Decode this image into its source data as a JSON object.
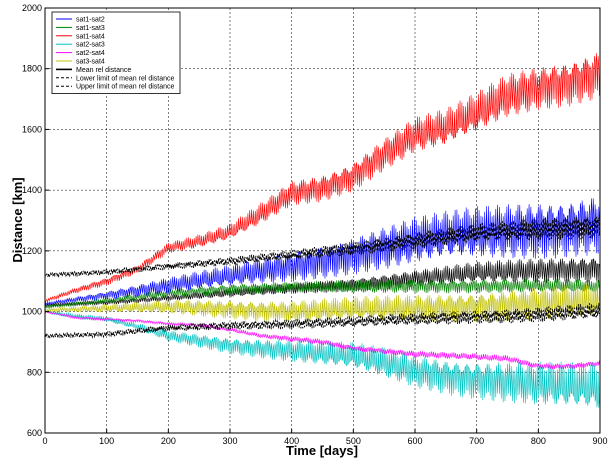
{
  "chart_data": {
    "type": "line",
    "title": "",
    "xlabel": "Time [days]",
    "ylabel": "Distance [km]",
    "xlim": [
      0,
      900
    ],
    "ylim": [
      600,
      2000
    ],
    "xticks": [
      0,
      100,
      200,
      300,
      400,
      500,
      600,
      700,
      800,
      900
    ],
    "yticks": [
      600,
      800,
      1000,
      1200,
      1400,
      1600,
      1800,
      2000
    ],
    "grid": true,
    "legend_position": "top-left",
    "series": [
      {
        "name": "sat1-sat2",
        "color": "#0000ff",
        "style": "solid",
        "x": [
          0,
          100,
          200,
          300,
          400,
          500,
          600,
          700,
          800,
          900
        ],
        "y": [
          1025,
          1055,
          1085,
          1115,
          1150,
          1190,
          1230,
          1255,
          1275,
          1295
        ],
        "amplitude": [
          5,
          15,
          30,
          40,
          55,
          70,
          85,
          95,
          105,
          110
        ]
      },
      {
        "name": "sat1-sat3",
        "color": "#008000",
        "style": "solid",
        "x": [
          0,
          100,
          200,
          300,
          400,
          500,
          600,
          700,
          800,
          900
        ],
        "y": [
          1015,
          1035,
          1060,
          1075,
          1080,
          1080,
          1085,
          1085,
          1085,
          1080
        ],
        "amplitude": [
          5,
          10,
          15,
          20,
          20,
          25,
          25,
          25,
          25,
          25
        ]
      },
      {
        "name": "sat1-sat4",
        "color": "#ff0000",
        "style": "solid",
        "x": [
          0,
          50,
          100,
          150,
          200,
          250,
          300,
          350,
          400,
          450,
          500,
          550,
          600,
          650,
          700,
          750,
          800,
          850,
          900
        ],
        "y": [
          1035,
          1070,
          1100,
          1140,
          1210,
          1230,
          1260,
          1320,
          1390,
          1410,
          1450,
          1520,
          1580,
          1600,
          1650,
          1710,
          1740,
          1760,
          1790
        ],
        "amplitude": [
          5,
          10,
          15,
          15,
          20,
          25,
          30,
          40,
          45,
          50,
          55,
          60,
          65,
          70,
          75,
          80,
          80,
          85,
          90
        ]
      },
      {
        "name": "sat2-sat3",
        "color": "#00c0c0",
        "style": "solid",
        "x": [
          0,
          50,
          100,
          150,
          200,
          250,
          300,
          350,
          400,
          450,
          500,
          550,
          600,
          650,
          700,
          750,
          800,
          850,
          900
        ],
        "y": [
          1000,
          985,
          975,
          950,
          920,
          905,
          890,
          880,
          870,
          860,
          850,
          830,
          805,
          790,
          780,
          770,
          760,
          750,
          745
        ],
        "amplitude": [
          5,
          8,
          10,
          12,
          20,
          25,
          30,
          35,
          40,
          45,
          50,
          55,
          60,
          65,
          70,
          75,
          80,
          85,
          90
        ]
      },
      {
        "name": "sat2-sat4",
        "color": "#ff00ff",
        "style": "solid",
        "x": [
          0,
          50,
          100,
          150,
          200,
          250,
          300,
          350,
          400,
          450,
          500,
          550,
          600,
          650,
          700,
          750,
          800,
          850,
          900
        ],
        "y": [
          1000,
          980,
          975,
          970,
          960,
          955,
          940,
          920,
          910,
          900,
          880,
          870,
          860,
          855,
          850,
          845,
          820,
          820,
          830
        ],
        "amplitude": [
          3,
          5,
          5,
          5,
          5,
          6,
          8,
          8,
          10,
          10,
          10,
          10,
          12,
          12,
          12,
          12,
          10,
          10,
          10
        ]
      },
      {
        "name": "sat3-sat4",
        "color": "#c0c000",
        "style": "solid",
        "x": [
          0,
          100,
          200,
          300,
          400,
          500,
          600,
          700,
          800,
          900
        ],
        "y": [
          1005,
          1010,
          1015,
          1010,
          1000,
          1005,
          1010,
          1020,
          1025,
          1030
        ],
        "amplitude": [
          5,
          15,
          25,
          35,
          40,
          45,
          50,
          55,
          60,
          65
        ]
      },
      {
        "name": "Mean rel distance",
        "color": "#000000",
        "style": "solid",
        "x": [
          0,
          100,
          200,
          300,
          400,
          500,
          600,
          700,
          800,
          900
        ],
        "y": [
          1020,
          1030,
          1045,
          1060,
          1075,
          1090,
          1110,
          1125,
          1135,
          1145
        ],
        "amplitude": [
          5,
          8,
          10,
          15,
          20,
          25,
          30,
          40,
          45,
          50
        ]
      },
      {
        "name": "Lower limit of mean rel distance",
        "color": "#000000",
        "style": "dashed",
        "x": [
          0,
          100,
          200,
          300,
          400,
          500,
          600,
          700,
          800,
          900
        ],
        "y": [
          920,
          925,
          945,
          955,
          960,
          965,
          975,
          985,
          990,
          1000
        ],
        "amplitude": [
          8,
          10,
          12,
          15,
          18,
          20,
          22,
          25,
          28,
          30
        ]
      },
      {
        "name": "Upper limit of mean rel distance",
        "color": "#000000",
        "style": "dashed",
        "x": [
          0,
          100,
          200,
          300,
          400,
          500,
          600,
          700,
          800,
          900
        ],
        "y": [
          1120,
          1130,
          1150,
          1165,
          1185,
          1210,
          1235,
          1255,
          1270,
          1285
        ],
        "amplitude": [
          8,
          10,
          12,
          15,
          18,
          25,
          30,
          35,
          40,
          45
        ]
      }
    ]
  }
}
